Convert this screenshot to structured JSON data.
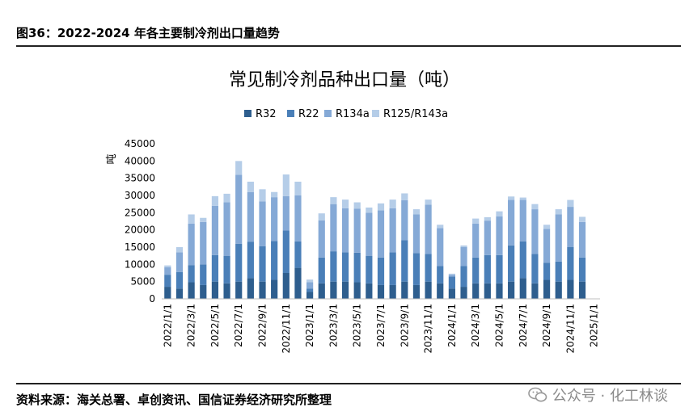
{
  "figure_title": "图36：2022-2024 年各主要制冷剂出口量趋势",
  "source_note": "资料来源：海关总署、卓创资讯、国信证券经济研究所整理",
  "watermark": "公众号 · 化工林谈",
  "chart_data": {
    "type": "bar",
    "stacked": true,
    "title": "常见制冷剂品种出口量（吨）",
    "ylabel": "吨",
    "xlabel": "",
    "ylim": [
      0,
      45000
    ],
    "yticks": [
      0,
      5000,
      10000,
      15000,
      20000,
      25000,
      30000,
      35000,
      40000,
      45000
    ],
    "legend_position": "top",
    "grid": false,
    "categories": [
      "2022/1/1",
      "2022/2/1",
      "2022/3/1",
      "2022/4/1",
      "2022/5/1",
      "2022/6/1",
      "2022/7/1",
      "2022/8/1",
      "2022/9/1",
      "2022/10/1",
      "2022/11/1",
      "2022/12/1",
      "2023/1/1",
      "2023/2/1",
      "2023/3/1",
      "2023/4/1",
      "2023/5/1",
      "2023/6/1",
      "2023/7/1",
      "2023/8/1",
      "2023/9/1",
      "2023/10/1",
      "2023/11/1",
      "2023/12/1",
      "2024/1/1",
      "2024/2/1",
      "2024/3/1",
      "2024/4/1",
      "2024/5/1",
      "2024/6/1",
      "2024/7/1",
      "2024/8/1",
      "2024/9/1",
      "2024/10/1",
      "2024/11/1",
      "2024/12/1",
      "2025/1/1"
    ],
    "tick_labels": [
      "2022/1/1",
      "2022/3/1",
      "2022/5/1",
      "2022/7/1",
      "2022/9/1",
      "2022/11/1",
      "2023/1/1",
      "2023/3/1",
      "2023/5/1",
      "2023/7/1",
      "2023/9/1",
      "2023/11/1",
      "2024/1/1",
      "2024/3/1",
      "2024/5/1",
      "2024/7/1",
      "2024/9/1",
      "2024/11/1",
      "2025/1/1"
    ],
    "series": [
      {
        "name": "R32",
        "color": "#2e5e8e",
        "values": [
          3500,
          3000,
          4800,
          4000,
          5000,
          4500,
          5000,
          6000,
          5000,
          5500,
          7500,
          9000,
          2000,
          4500,
          5000,
          5000,
          4800,
          4500,
          4000,
          4000,
          5000,
          4000,
          5000,
          4500,
          3000,
          3500,
          4500,
          4500,
          4500,
          5000,
          6000,
          4500,
          5500,
          5000,
          5500,
          5000,
          null
        ]
      },
      {
        "name": "R22",
        "color": "#4a7fb8",
        "values": [
          3500,
          4800,
          5000,
          6000,
          7700,
          8000,
          11000,
          10600,
          10300,
          11300,
          12300,
          7700,
          1000,
          7500,
          8800,
          8500,
          8600,
          8000,
          8000,
          9500,
          12000,
          9300,
          8000,
          5000,
          3500,
          6000,
          7500,
          8200,
          8200,
          10500,
          10700,
          8500,
          5000,
          5800,
          9500,
          7000,
          null
        ]
      },
      {
        "name": "R134a",
        "color": "#85a9d6",
        "values": [
          2200,
          5700,
          12000,
          12300,
          14300,
          15500,
          20000,
          14400,
          13000,
          12700,
          10000,
          13300,
          1800,
          10800,
          13700,
          12800,
          12800,
          12500,
          13700,
          12800,
          11600,
          11200,
          14300,
          11000,
          500,
          5500,
          9800,
          10000,
          11200,
          13200,
          12000,
          13000,
          9800,
          13700,
          11700,
          10300,
          null
        ]
      },
      {
        "name": "R125/R143a",
        "color": "#b5cde8",
        "values": [
          500,
          1500,
          2700,
          1200,
          2800,
          2500,
          4000,
          3000,
          3500,
          1500,
          6300,
          4000,
          800,
          2000,
          2000,
          2500,
          1800,
          1500,
          2000,
          2500,
          2000,
          1500,
          1500,
          1000,
          300,
          500,
          1500,
          1000,
          1500,
          1000,
          700,
          1500,
          1200,
          1500,
          2000,
          1500,
          null
        ]
      }
    ]
  }
}
